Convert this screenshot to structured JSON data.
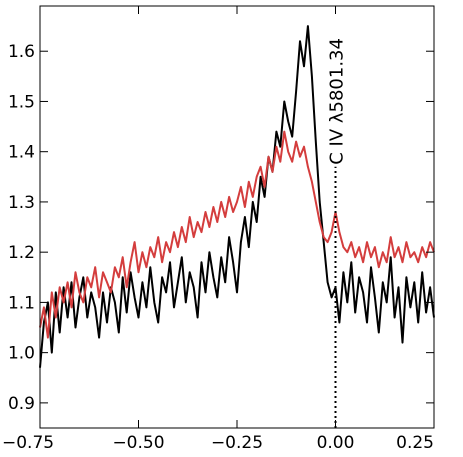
{
  "chart_data": {
    "type": "line",
    "title": "",
    "xlabel": "",
    "ylabel": "",
    "xlim": [
      -0.75,
      0.25
    ],
    "ylim": [
      0.85,
      1.69
    ],
    "x_ticks": [
      -0.75,
      -0.5,
      -0.25,
      0.0,
      0.25
    ],
    "x_tick_labels": [
      "−0.75",
      "−0.50",
      "−0.25",
      "0.00",
      "0.25"
    ],
    "y_ticks": [
      0.9,
      1.0,
      1.1,
      1.2,
      1.3,
      1.4,
      1.5,
      1.6
    ],
    "y_tick_labels": [
      "0.9",
      "1.0",
      "1.1",
      "1.2",
      "1.3",
      "1.4",
      "1.5",
      "1.6"
    ],
    "grid": false,
    "legend": "none",
    "annotation": {
      "text": "C IV λ5801.34",
      "x": 0.0,
      "line_style": "dotted",
      "line_from_y": 0.85,
      "line_to_y": 1.37
    },
    "series": [
      {
        "color": "#000000",
        "points": [
          [
            -0.75,
            0.97
          ],
          [
            -0.74,
            1.06
          ],
          [
            -0.73,
            1.1
          ],
          [
            -0.72,
            1.0
          ],
          [
            -0.71,
            1.12
          ],
          [
            -0.7,
            1.04
          ],
          [
            -0.69,
            1.13
          ],
          [
            -0.68,
            1.07
          ],
          [
            -0.67,
            1.14
          ],
          [
            -0.66,
            1.05
          ],
          [
            -0.65,
            1.11
          ],
          [
            -0.64,
            1.15
          ],
          [
            -0.63,
            1.07
          ],
          [
            -0.62,
            1.12
          ],
          [
            -0.61,
            1.09
          ],
          [
            -0.6,
            1.03
          ],
          [
            -0.59,
            1.12
          ],
          [
            -0.58,
            1.06
          ],
          [
            -0.57,
            1.13
          ],
          [
            -0.56,
            1.1
          ],
          [
            -0.55,
            1.04
          ],
          [
            -0.54,
            1.15
          ],
          [
            -0.53,
            1.08
          ],
          [
            -0.52,
            1.16
          ],
          [
            -0.51,
            1.11
          ],
          [
            -0.5,
            1.07
          ],
          [
            -0.49,
            1.14
          ],
          [
            -0.48,
            1.09
          ],
          [
            -0.47,
            1.17
          ],
          [
            -0.46,
            1.1
          ],
          [
            -0.45,
            1.06
          ],
          [
            -0.44,
            1.15
          ],
          [
            -0.43,
            1.12
          ],
          [
            -0.42,
            1.18
          ],
          [
            -0.41,
            1.09
          ],
          [
            -0.4,
            1.14
          ],
          [
            -0.39,
            1.19
          ],
          [
            -0.38,
            1.1
          ],
          [
            -0.37,
            1.16
          ],
          [
            -0.36,
            1.13
          ],
          [
            -0.35,
            1.07
          ],
          [
            -0.34,
            1.18
          ],
          [
            -0.33,
            1.12
          ],
          [
            -0.32,
            1.2
          ],
          [
            -0.31,
            1.15
          ],
          [
            -0.3,
            1.11
          ],
          [
            -0.29,
            1.19
          ],
          [
            -0.28,
            1.14
          ],
          [
            -0.27,
            1.23
          ],
          [
            -0.26,
            1.18
          ],
          [
            -0.25,
            1.12
          ],
          [
            -0.24,
            1.22
          ],
          [
            -0.23,
            1.27
          ],
          [
            -0.22,
            1.21
          ],
          [
            -0.21,
            1.3
          ],
          [
            -0.2,
            1.26
          ],
          [
            -0.19,
            1.35
          ],
          [
            -0.18,
            1.31
          ],
          [
            -0.17,
            1.39
          ],
          [
            -0.16,
            1.36
          ],
          [
            -0.15,
            1.44
          ],
          [
            -0.14,
            1.41
          ],
          [
            -0.13,
            1.5
          ],
          [
            -0.12,
            1.46
          ],
          [
            -0.11,
            1.43
          ],
          [
            -0.1,
            1.52
          ],
          [
            -0.09,
            1.62
          ],
          [
            -0.08,
            1.57
          ],
          [
            -0.07,
            1.65
          ],
          [
            -0.06,
            1.55
          ],
          [
            -0.05,
            1.42
          ],
          [
            -0.04,
            1.3
          ],
          [
            -0.03,
            1.22
          ],
          [
            -0.02,
            1.14
          ],
          [
            -0.01,
            1.11
          ],
          [
            0.0,
            1.13
          ],
          [
            0.01,
            1.06
          ],
          [
            0.02,
            1.16
          ],
          [
            0.03,
            1.1
          ],
          [
            0.04,
            1.18
          ],
          [
            0.05,
            1.08
          ],
          [
            0.06,
            1.15
          ],
          [
            0.07,
            1.12
          ],
          [
            0.08,
            1.06
          ],
          [
            0.09,
            1.17
          ],
          [
            0.1,
            1.11
          ],
          [
            0.11,
            1.04
          ],
          [
            0.12,
            1.14
          ],
          [
            0.13,
            1.1
          ],
          [
            0.14,
            1.19
          ],
          [
            0.15,
            1.07
          ],
          [
            0.16,
            1.13
          ],
          [
            0.17,
            1.02
          ],
          [
            0.18,
            1.15
          ],
          [
            0.19,
            1.09
          ],
          [
            0.2,
            1.14
          ],
          [
            0.21,
            1.06
          ],
          [
            0.22,
            1.16
          ],
          [
            0.23,
            1.08
          ],
          [
            0.24,
            1.13
          ],
          [
            0.25,
            1.07
          ]
        ]
      },
      {
        "color": "#d43d3d",
        "points": [
          [
            -0.75,
            1.05
          ],
          [
            -0.74,
            1.09
          ],
          [
            -0.73,
            1.03
          ],
          [
            -0.72,
            1.12
          ],
          [
            -0.71,
            1.07
          ],
          [
            -0.7,
            1.13
          ],
          [
            -0.69,
            1.1
          ],
          [
            -0.68,
            1.14
          ],
          [
            -0.67,
            1.09
          ],
          [
            -0.66,
            1.16
          ],
          [
            -0.65,
            1.12
          ],
          [
            -0.64,
            1.1
          ],
          [
            -0.63,
            1.15
          ],
          [
            -0.62,
            1.13
          ],
          [
            -0.61,
            1.17
          ],
          [
            -0.6,
            1.11
          ],
          [
            -0.59,
            1.16
          ],
          [
            -0.58,
            1.14
          ],
          [
            -0.57,
            1.12
          ],
          [
            -0.56,
            1.17
          ],
          [
            -0.55,
            1.15
          ],
          [
            -0.54,
            1.19
          ],
          [
            -0.53,
            1.13
          ],
          [
            -0.52,
            1.18
          ],
          [
            -0.51,
            1.22
          ],
          [
            -0.5,
            1.16
          ],
          [
            -0.49,
            1.2
          ],
          [
            -0.48,
            1.17
          ],
          [
            -0.47,
            1.21
          ],
          [
            -0.46,
            1.19
          ],
          [
            -0.45,
            1.23
          ],
          [
            -0.44,
            1.18
          ],
          [
            -0.43,
            1.22
          ],
          [
            -0.42,
            1.2
          ],
          [
            -0.41,
            1.24
          ],
          [
            -0.4,
            1.21
          ],
          [
            -0.39,
            1.25
          ],
          [
            -0.38,
            1.22
          ],
          [
            -0.37,
            1.27
          ],
          [
            -0.36,
            1.23
          ],
          [
            -0.35,
            1.26
          ],
          [
            -0.34,
            1.24
          ],
          [
            -0.33,
            1.28
          ],
          [
            -0.32,
            1.25
          ],
          [
            -0.31,
            1.29
          ],
          [
            -0.3,
            1.26
          ],
          [
            -0.29,
            1.3
          ],
          [
            -0.28,
            1.27
          ],
          [
            -0.27,
            1.31
          ],
          [
            -0.26,
            1.28
          ],
          [
            -0.25,
            1.3
          ],
          [
            -0.24,
            1.33
          ],
          [
            -0.23,
            1.29
          ],
          [
            -0.22,
            1.34
          ],
          [
            -0.21,
            1.31
          ],
          [
            -0.2,
            1.35
          ],
          [
            -0.19,
            1.37
          ],
          [
            -0.18,
            1.33
          ],
          [
            -0.17,
            1.39
          ],
          [
            -0.16,
            1.36
          ],
          [
            -0.15,
            1.41
          ],
          [
            -0.14,
            1.38
          ],
          [
            -0.13,
            1.44
          ],
          [
            -0.12,
            1.4
          ],
          [
            -0.11,
            1.38
          ],
          [
            -0.1,
            1.42
          ],
          [
            -0.09,
            1.39
          ],
          [
            -0.08,
            1.41
          ],
          [
            -0.07,
            1.37
          ],
          [
            -0.06,
            1.34
          ],
          [
            -0.05,
            1.3
          ],
          [
            -0.04,
            1.26
          ],
          [
            -0.03,
            1.23
          ],
          [
            -0.02,
            1.22
          ],
          [
            -0.01,
            1.24
          ],
          [
            0.0,
            1.28
          ],
          [
            0.01,
            1.24
          ],
          [
            0.02,
            1.21
          ],
          [
            0.03,
            1.2
          ],
          [
            0.04,
            1.22
          ],
          [
            0.05,
            1.19
          ],
          [
            0.06,
            1.21
          ],
          [
            0.07,
            1.18
          ],
          [
            0.08,
            1.22
          ],
          [
            0.09,
            1.19
          ],
          [
            0.1,
            1.21
          ],
          [
            0.11,
            1.17
          ],
          [
            0.12,
            1.2
          ],
          [
            0.13,
            1.18
          ],
          [
            0.14,
            1.23
          ],
          [
            0.15,
            1.19
          ],
          [
            0.16,
            1.21
          ],
          [
            0.17,
            1.18
          ],
          [
            0.18,
            1.22
          ],
          [
            0.19,
            1.19
          ],
          [
            0.2,
            1.2
          ],
          [
            0.21,
            1.18
          ],
          [
            0.22,
            1.21
          ],
          [
            0.23,
            1.19
          ],
          [
            0.24,
            1.22
          ],
          [
            0.25,
            1.2
          ]
        ]
      }
    ]
  }
}
